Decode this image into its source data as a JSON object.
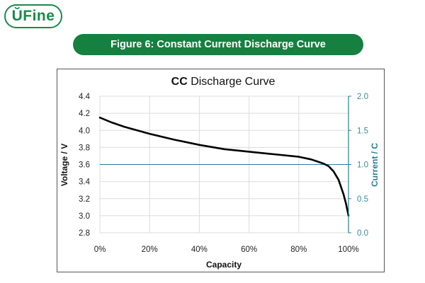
{
  "logo": {
    "text": "ŬFine"
  },
  "banner": {
    "text": "Figure 6: Constant Current Discharge Curve"
  },
  "chart_data": {
    "type": "line",
    "title_bold": "CC",
    "title_rest": " Discharge Curve",
    "xlabel": "Capacity",
    "ylabel": "Voltage / V",
    "y2label": "Current / C",
    "xlim": [
      0,
      100
    ],
    "ylim": [
      2.8,
      4.4
    ],
    "y2lim": [
      0,
      2.0
    ],
    "x_ticks": [
      0,
      20,
      40,
      60,
      80,
      100
    ],
    "x_tick_labels": [
      "0%",
      "20%",
      "40%",
      "60%",
      "80%",
      "100%"
    ],
    "y_ticks": [
      4.4,
      4.2,
      4.0,
      3.8,
      3.6,
      3.4,
      3.2,
      3.0,
      2.8
    ],
    "y_tick_labels": [
      "4.4",
      "4.2",
      "4.0",
      "3.8",
      "3.6",
      "3.4",
      "3.2",
      "3.0",
      "2.8"
    ],
    "y2_ticks": [
      2.0,
      1.5,
      1.0,
      0.5,
      0.0
    ],
    "y2_tick_labels": [
      "2.0",
      "1.5",
      "1.0",
      "0.5",
      "0.0"
    ],
    "grid": true,
    "series": [
      {
        "axis": "left",
        "color": "#000000",
        "x": [
          0,
          5,
          10,
          20,
          30,
          40,
          50,
          60,
          70,
          80,
          85,
          88,
          90,
          92,
          94,
          96,
          98,
          99,
          100
        ],
        "y": [
          4.15,
          4.09,
          4.04,
          3.96,
          3.89,
          3.83,
          3.78,
          3.75,
          3.72,
          3.69,
          3.66,
          3.63,
          3.61,
          3.58,
          3.52,
          3.42,
          3.25,
          3.14,
          3.0
        ]
      },
      {
        "axis": "right",
        "color": "#2a7d96",
        "x": [
          0,
          100
        ],
        "y": [
          1.0,
          1.0
        ]
      }
    ],
    "colors": {
      "curve": "#000000",
      "current": "#2a7d96",
      "right_axis": "#2a7d96",
      "banner": "#168041",
      "logo": "#1a8a4a"
    }
  }
}
